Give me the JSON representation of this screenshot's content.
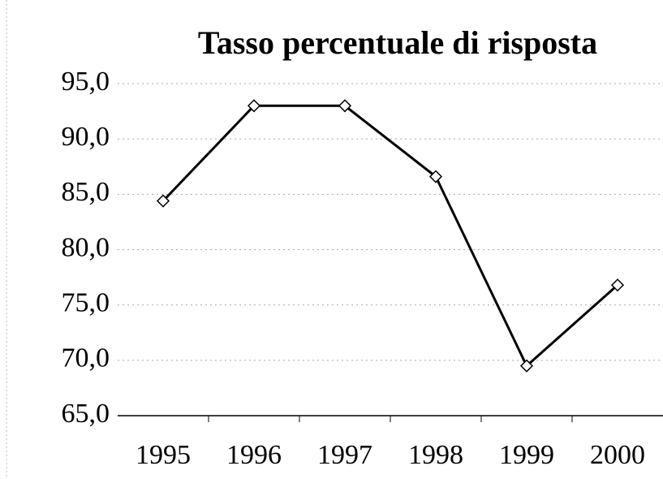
{
  "chart_data": {
    "type": "line",
    "title": "Tasso percentuale di risposta",
    "categories": [
      "1995",
      "1996",
      "1997",
      "1998",
      "1999",
      "2000"
    ],
    "values": [
      84.4,
      93.0,
      93.0,
      86.6,
      69.5,
      76.8
    ],
    "color": "#000000",
    "ylim": [
      65,
      95
    ],
    "yticks": [
      {
        "value": 65,
        "label": "65,0"
      },
      {
        "value": 70,
        "label": "70,0"
      },
      {
        "value": 75,
        "label": "75,0"
      },
      {
        "value": 80,
        "label": "80,0"
      },
      {
        "value": 85,
        "label": "85,0"
      },
      {
        "value": 90,
        "label": "90,0"
      },
      {
        "value": 95,
        "label": "95,0"
      }
    ],
    "grid": true
  }
}
